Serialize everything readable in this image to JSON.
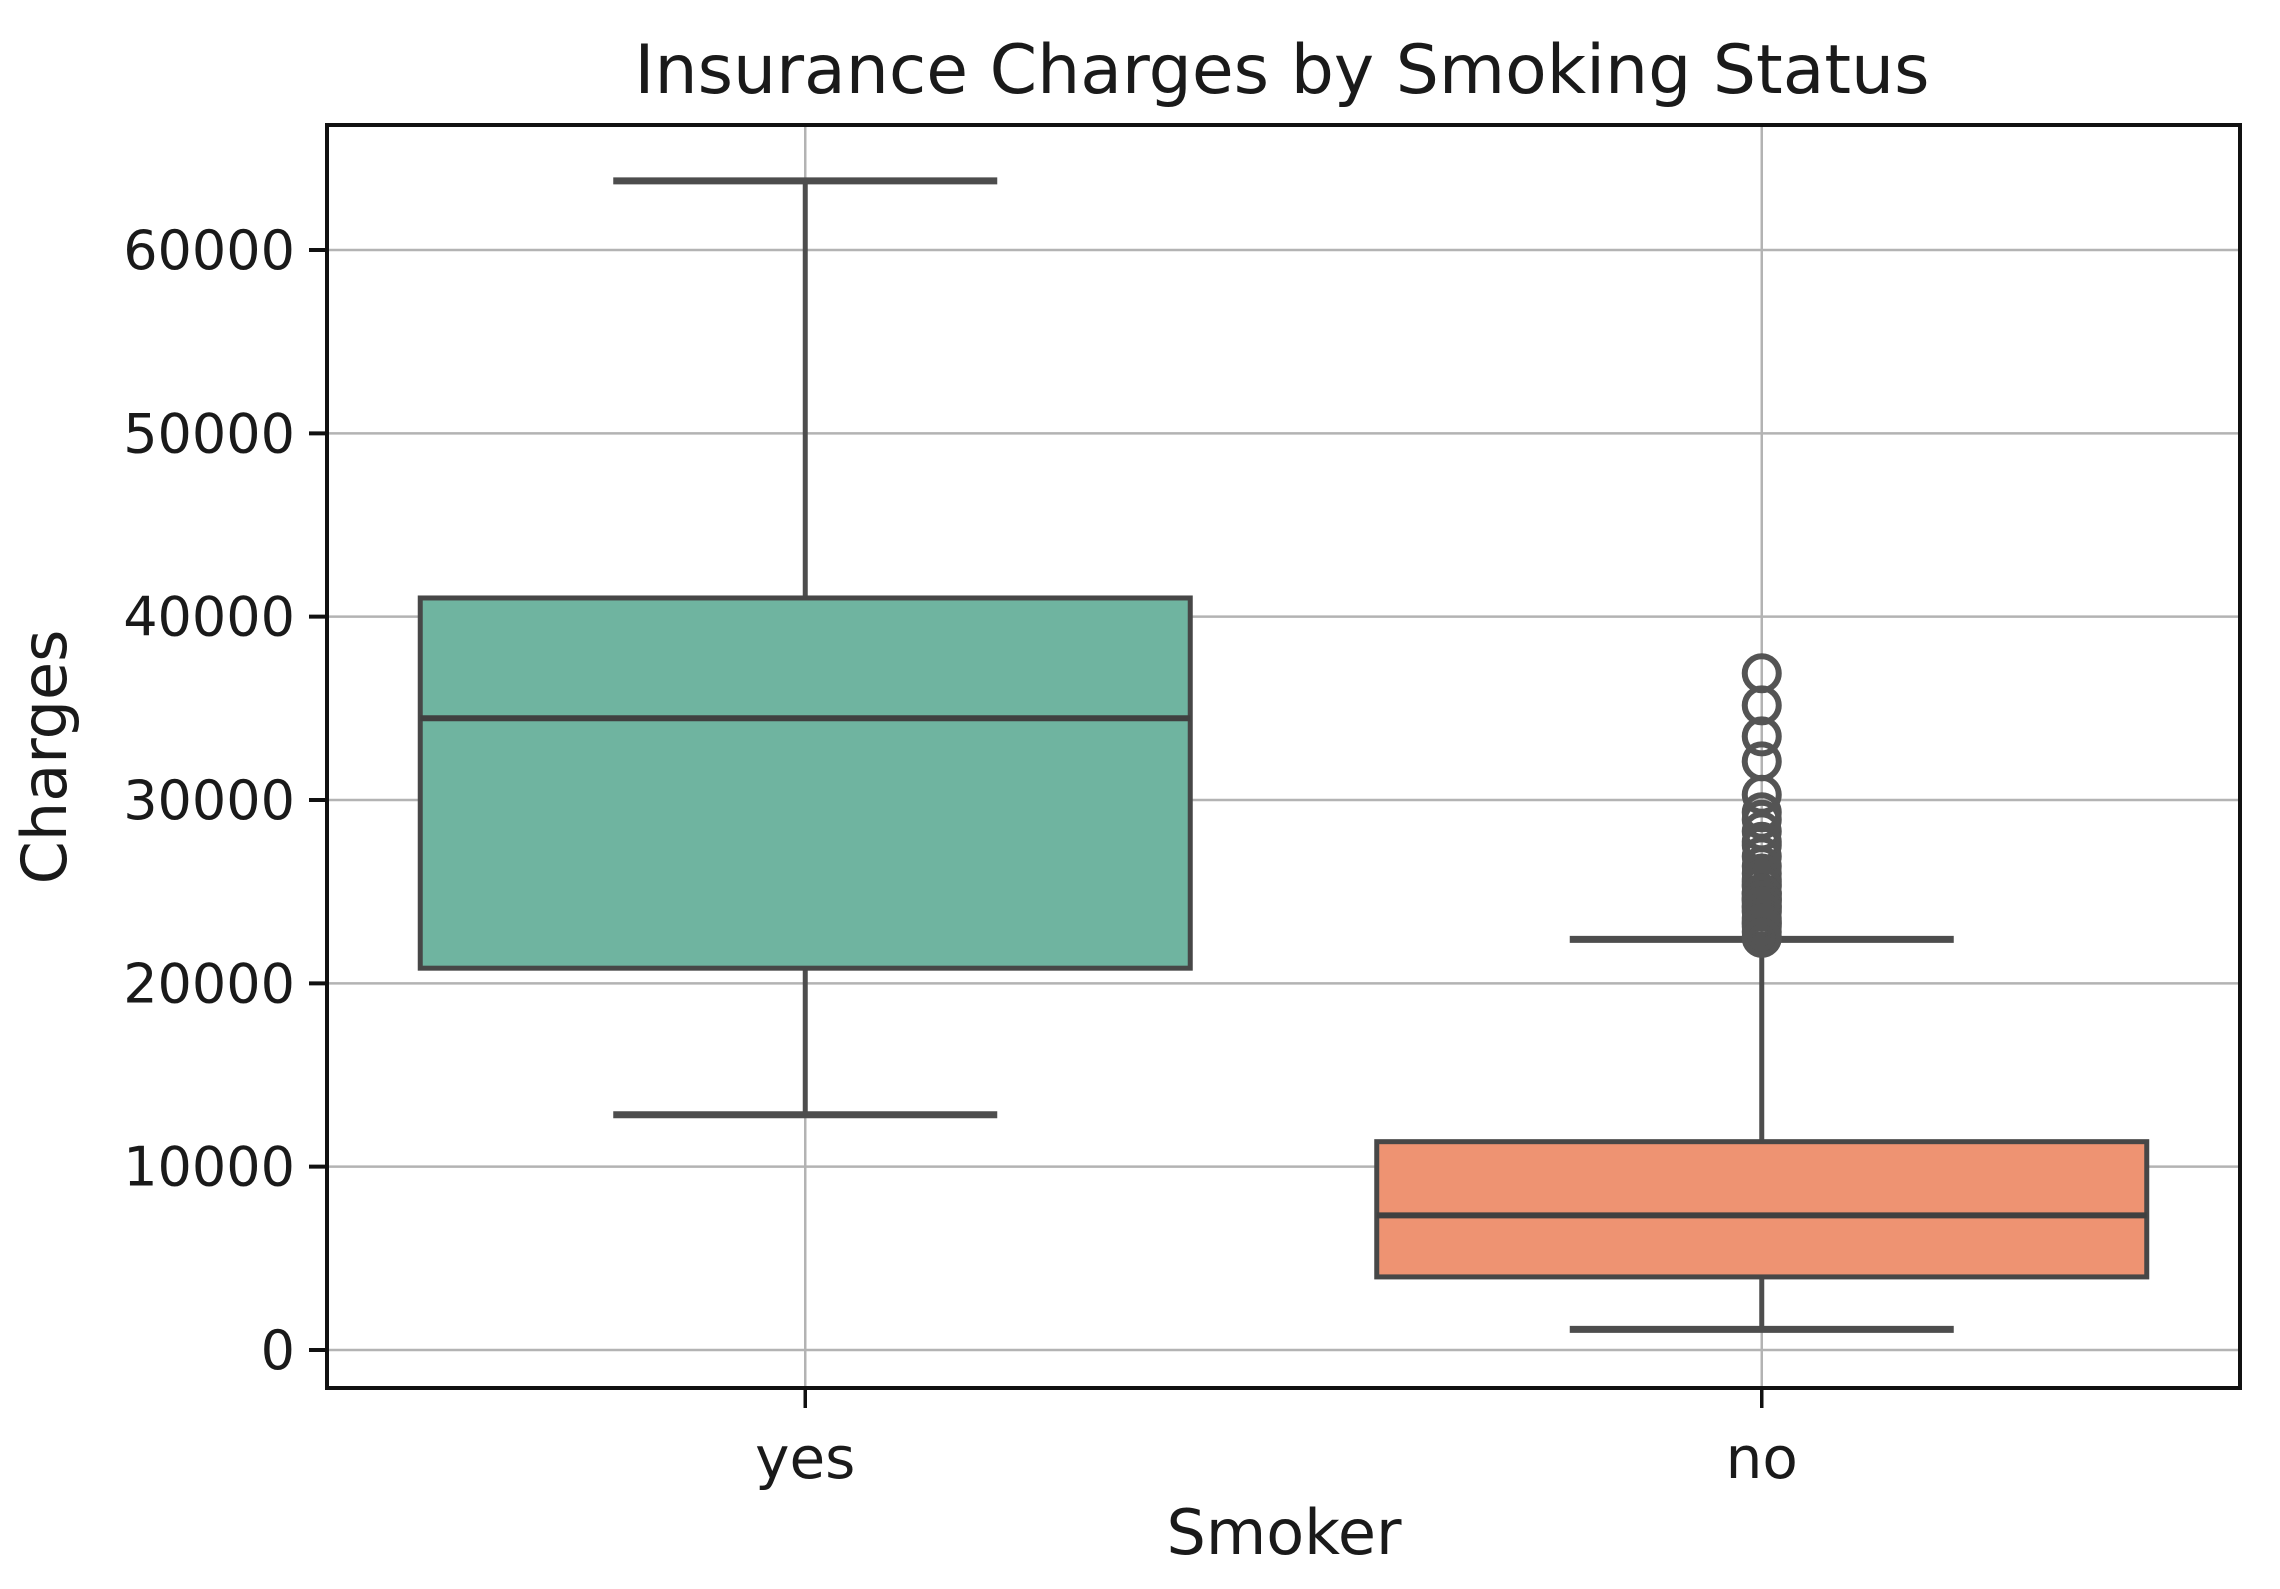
{
  "chart_data": {
    "type": "box",
    "title": "Insurance Charges by Smoking Status",
    "xlabel": "Smoker",
    "ylabel": "Charges",
    "categories": [
      "yes",
      "no"
    ],
    "yticks": [
      0,
      10000,
      20000,
      30000,
      40000,
      50000,
      60000
    ],
    "ylim": [
      -2073,
      66818
    ],
    "grid": "both",
    "legend": "none",
    "series": [
      {
        "category": "yes",
        "whisker_low": 12829.5,
        "q1": 20826.2,
        "median": 34456.3,
        "q3": 41019.2,
        "whisker_high": 63770.4,
        "outliers": [],
        "fill_color": "#6fb4a0"
      },
      {
        "category": "no",
        "whisker_low": 1121.9,
        "q1": 3986.4,
        "median": 7345.4,
        "q3": 11362.9,
        "whisker_high": 22395.7,
        "outliers": [
          36911,
          35160,
          33472,
          32109,
          30285,
          29331,
          28923,
          28288,
          27724,
          27534,
          26927,
          26392,
          25993,
          25679,
          25517,
          25382,
          25309,
          24915,
          24894,
          24873,
          24672,
          24603,
          24536,
          24520,
          24394,
          24227,
          24181,
          24107,
          23967,
          23888,
          23563,
          23401,
          23289,
          23245,
          23083,
          22804,
          22494,
          22479
        ],
        "fill_color": "#ee9372"
      }
    ],
    "colors": {
      "grid": "#b3b3b3",
      "spine": "#111111",
      "box_edge": "#474747",
      "whisker": "#4d4d4d",
      "median": "#404040",
      "outlier_edge": "#545454",
      "text": "#1a1a1a"
    }
  }
}
